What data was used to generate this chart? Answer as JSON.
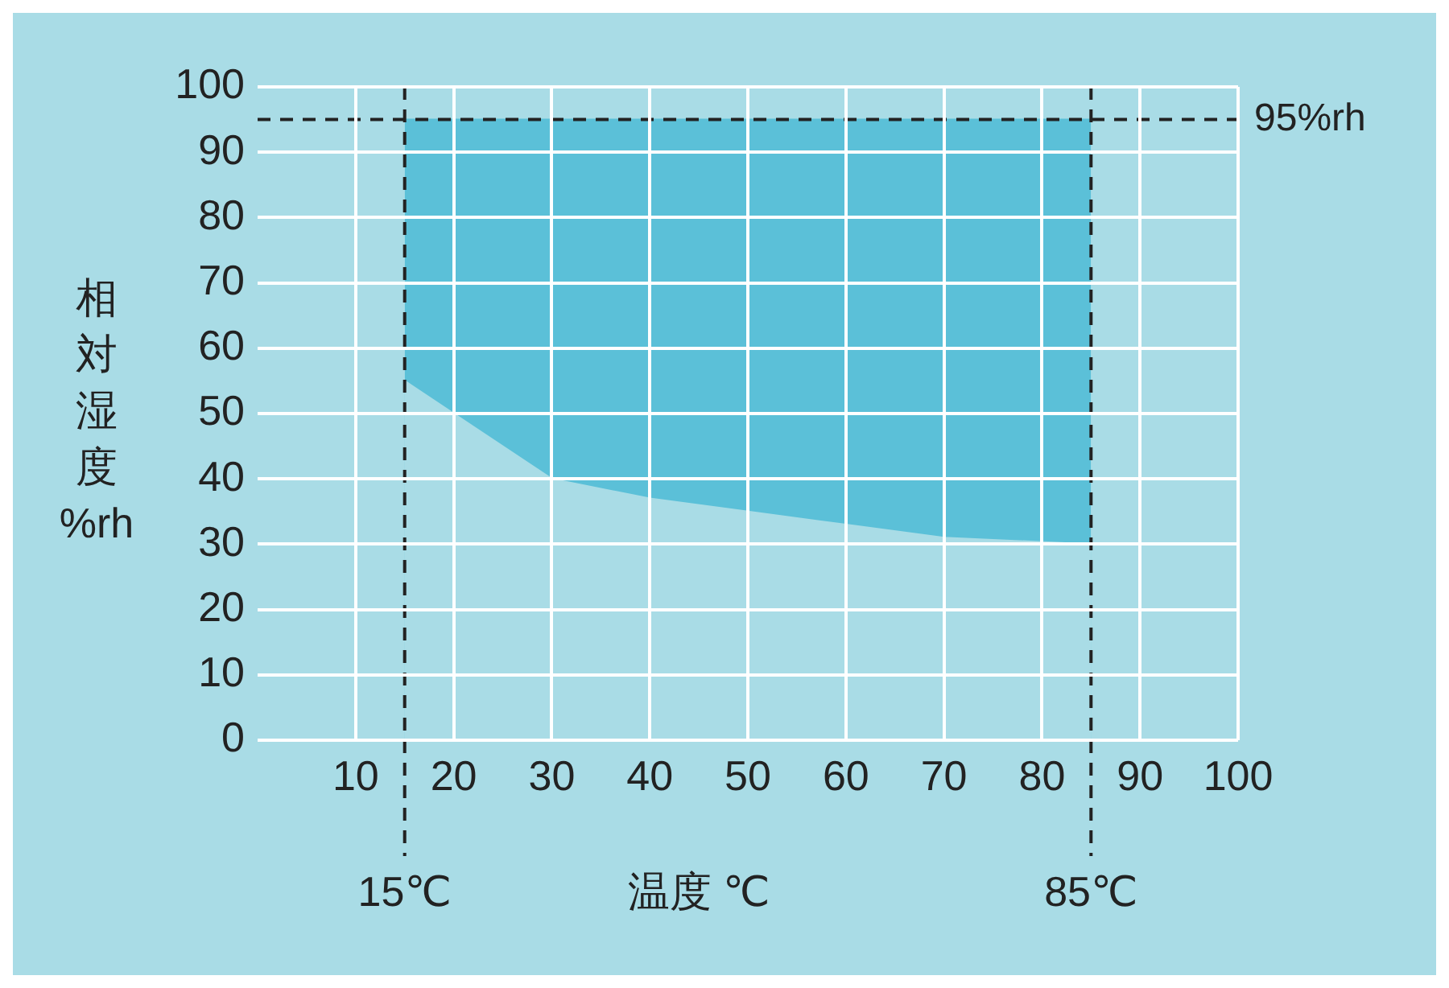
{
  "chart_data": {
    "type": "area",
    "xlabel": "温度 ℃",
    "ylabel": "相対湿度%rh",
    "xlim": [
      0,
      100
    ],
    "xticks": [
      10,
      20,
      30,
      40,
      50,
      60,
      70,
      80,
      90,
      100
    ],
    "ylim": [
      0,
      100
    ],
    "yticks": [
      0,
      10,
      20,
      30,
      40,
      50,
      60,
      70,
      80,
      90,
      100
    ],
    "grid": true,
    "legend": false,
    "series": [
      {
        "color": "#5bc0d8",
        "x": [
          15,
          85
        ],
        "values": [
          95,
          95
        ]
      },
      {
        "color": "#a9dce6",
        "x": [
          15,
          20,
          30,
          40,
          50,
          60,
          70,
          85
        ],
        "values": [
          55,
          50,
          40,
          37,
          35,
          33,
          31,
          30
        ]
      }
    ],
    "ref_lines": [
      {
        "axis": "x",
        "value": 15,
        "label": "15℃",
        "line_style": "dashed",
        "color": "#222222"
      },
      {
        "axis": "x",
        "value": 85,
        "label": "85℃",
        "line_style": "dashed",
        "color": "#222222"
      },
      {
        "axis": "y",
        "value": 95,
        "label": "95%rh",
        "line_style": "dashed",
        "color": "#222222"
      }
    ]
  }
}
